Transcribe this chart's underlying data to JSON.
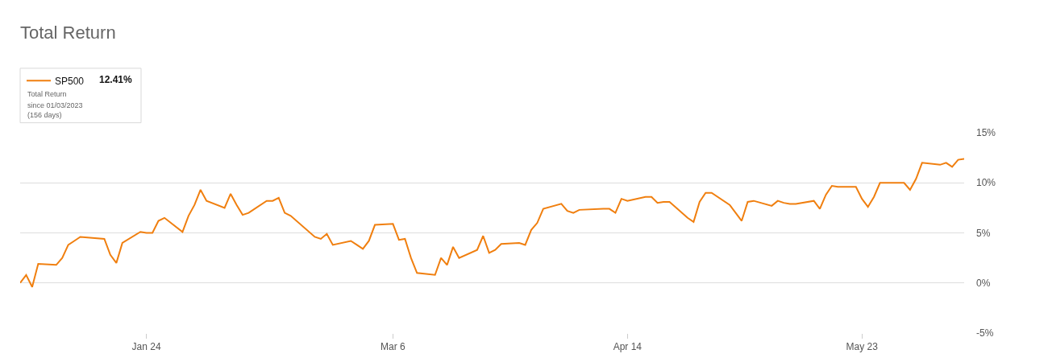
{
  "chart_data": {
    "type": "line",
    "title": "Total Return",
    "annotations": [
      "12.41%",
      "Total Return",
      "since 01/03/2023",
      "(156 days)"
    ],
    "x": [
      "2023-01-03",
      "2023-01-04",
      "2023-01-05",
      "2023-01-06",
      "2023-01-09",
      "2023-01-10",
      "2023-01-11",
      "2023-01-12",
      "2023-01-13",
      "2023-01-17",
      "2023-01-18",
      "2023-01-19",
      "2023-01-20",
      "2023-01-23",
      "2023-01-24",
      "2023-01-25",
      "2023-01-26",
      "2023-01-27",
      "2023-01-30",
      "2023-01-31",
      "2023-02-01",
      "2023-02-02",
      "2023-02-03",
      "2023-02-06",
      "2023-02-07",
      "2023-02-08",
      "2023-02-09",
      "2023-02-10",
      "2023-02-13",
      "2023-02-14",
      "2023-02-15",
      "2023-02-16",
      "2023-02-17",
      "2023-02-21",
      "2023-02-22",
      "2023-02-23",
      "2023-02-24",
      "2023-02-27",
      "2023-02-28",
      "2023-03-01",
      "2023-03-02",
      "2023-03-03",
      "2023-03-06",
      "2023-03-07",
      "2023-03-08",
      "2023-03-09",
      "2023-03-10",
      "2023-03-13",
      "2023-03-14",
      "2023-03-15",
      "2023-03-16",
      "2023-03-17",
      "2023-03-20",
      "2023-03-21",
      "2023-03-22",
      "2023-03-23",
      "2023-03-24",
      "2023-03-27",
      "2023-03-28",
      "2023-03-29",
      "2023-03-30",
      "2023-03-31",
      "2023-04-03",
      "2023-04-04",
      "2023-04-05",
      "2023-04-06",
      "2023-04-10",
      "2023-04-11",
      "2023-04-12",
      "2023-04-13",
      "2023-04-14",
      "2023-04-17",
      "2023-04-18",
      "2023-04-19",
      "2023-04-20",
      "2023-04-21",
      "2023-04-24",
      "2023-04-25",
      "2023-04-26",
      "2023-04-27",
      "2023-04-28",
      "2023-05-01",
      "2023-05-02",
      "2023-05-03",
      "2023-05-04",
      "2023-05-05",
      "2023-05-08",
      "2023-05-09",
      "2023-05-10",
      "2023-05-11",
      "2023-05-12",
      "2023-05-15",
      "2023-05-16",
      "2023-05-17",
      "2023-05-18",
      "2023-05-19",
      "2023-05-22",
      "2023-05-23",
      "2023-05-24",
      "2023-05-25",
      "2023-05-26",
      "2023-05-30",
      "2023-05-31",
      "2023-06-01",
      "2023-06-02",
      "2023-06-05",
      "2023-06-06",
      "2023-06-07",
      "2023-06-08",
      "2023-06-09"
    ],
    "series": [
      {
        "name": "SP500",
        "color": "#f07f0f",
        "values": [
          0.0,
          0.8,
          -0.4,
          1.9,
          1.8,
          2.5,
          3.8,
          4.2,
          4.6,
          4.4,
          2.8,
          2.0,
          4.0,
          5.1,
          5.0,
          5.0,
          6.2,
          6.5,
          5.1,
          6.7,
          7.8,
          9.3,
          8.2,
          7.5,
          8.9,
          7.8,
          6.8,
          7.0,
          8.2,
          8.2,
          8.5,
          7.0,
          6.7,
          4.6,
          4.4,
          4.9,
          3.8,
          4.2,
          3.8,
          3.4,
          4.2,
          5.8,
          5.9,
          4.3,
          4.4,
          2.5,
          1.0,
          0.8,
          2.5,
          1.8,
          3.6,
          2.5,
          3.3,
          4.7,
          3.0,
          3.3,
          3.9,
          4.0,
          3.8,
          5.3,
          6.0,
          7.4,
          7.9,
          7.2,
          7.0,
          7.3,
          7.4,
          7.4,
          7.0,
          8.4,
          8.2,
          8.6,
          8.6,
          8.0,
          8.1,
          8.1,
          6.5,
          6.1,
          8.1,
          9.0,
          9.0,
          7.8,
          7.0,
          6.2,
          8.1,
          8.2,
          7.7,
          8.2,
          8.0,
          7.9,
          7.9,
          8.2,
          7.4,
          8.8,
          9.7,
          9.6,
          9.6,
          8.4,
          7.6,
          8.6,
          10.0,
          10.0,
          9.3,
          10.4,
          12.0,
          11.8,
          12.0,
          11.6,
          12.3,
          12.4
        ]
      }
    ],
    "xlim": [
      "2023-01-03",
      "2023-06-09"
    ],
    "xticks": [
      {
        "value": "2023-01-24",
        "label": "Jan 24"
      },
      {
        "value": "2023-03-06",
        "label": "Mar 6"
      },
      {
        "value": "2023-04-14",
        "label": "Apr 14"
      },
      {
        "value": "2023-05-23",
        "label": "May 23"
      }
    ],
    "ylim": [
      -5,
      15
    ],
    "yticks": [
      {
        "value": -5,
        "label": "-5%"
      },
      {
        "value": 0,
        "label": "0%"
      },
      {
        "value": 5,
        "label": "5%"
      },
      {
        "value": 10,
        "label": "10%"
      },
      {
        "value": 15,
        "label": "15%"
      }
    ],
    "grid": "y",
    "legend": "top left",
    "marker": "none",
    "line_style": "solid"
  }
}
